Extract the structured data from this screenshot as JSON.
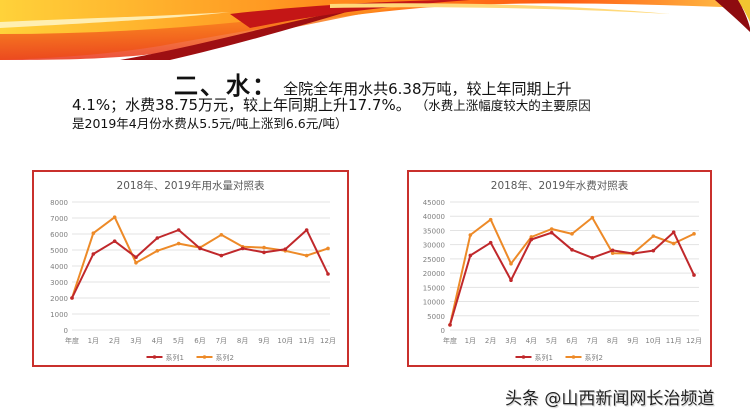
{
  "slide": {
    "heading": {
      "label": "二、水：",
      "line1_text": "全院全年用水共6.38万吨，较上年同期上升",
      "line2_text": "4.1%；水费38.75万元，较上年同期上升17.7%。",
      "line2_note": "（水费上涨幅度较大的主要原因",
      "line3_note": "是2019年4月份水费从5.5元/吨上涨到6.6元/吨）"
    },
    "watermark": "头条 @山西新闻网长治频道",
    "colors": {
      "series1": "#c0282b",
      "series2": "#ed8a28",
      "frame": "#c9302c",
      "grid": "#e3e3e3",
      "axis_text": "#7f7f7f"
    }
  },
  "chart_data": [
    {
      "type": "line",
      "title": "2018年、2019年用水量对照表",
      "xlabel": "",
      "ylabel": "",
      "categories": [
        "年度",
        "1月",
        "2月",
        "3月",
        "4月",
        "5月",
        "6月",
        "7月",
        "8月",
        "9月",
        "10月",
        "11月",
        "12月"
      ],
      "ylim": [
        0,
        8000
      ],
      "yticks": [
        "0",
        "1000",
        "2000",
        "3000",
        "4000",
        "5000",
        "6000",
        "7000",
        "8000"
      ],
      "grid": true,
      "legend_position": "bottom",
      "series": [
        {
          "name": "系列1",
          "values": [
            2000,
            4750,
            5550,
            4550,
            5750,
            6250,
            5100,
            4650,
            5100,
            4850,
            5050,
            6250,
            3500
          ]
        },
        {
          "name": "系列2",
          "values": [
            2000,
            6050,
            7050,
            4200,
            4950,
            5400,
            5150,
            5950,
            5200,
            5150,
            4950,
            4650,
            5100
          ]
        }
      ]
    },
    {
      "type": "line",
      "title": "2018年、2019年水费对照表",
      "xlabel": "",
      "ylabel": "",
      "categories": [
        "年度",
        "1月",
        "2月",
        "3月",
        "4月",
        "5月",
        "6月",
        "7月",
        "8月",
        "9月",
        "10月",
        "11月",
        "12月"
      ],
      "ylim": [
        0,
        45000
      ],
      "yticks": [
        "0",
        "5000",
        "10000",
        "15000",
        "20000",
        "25000",
        "30000",
        "35000",
        "40000",
        "45000"
      ],
      "grid": true,
      "legend_position": "bottom",
      "series": [
        {
          "name": "系列1",
          "values": [
            1800,
            26200,
            30700,
            17500,
            31800,
            34200,
            28200,
            25400,
            28000,
            26900,
            27900,
            34400,
            19300
          ]
        },
        {
          "name": "系列2",
          "values": [
            1800,
            33400,
            38800,
            23300,
            32700,
            35500,
            33800,
            39500,
            27000,
            26900,
            33000,
            30400,
            33800
          ]
        }
      ]
    }
  ]
}
